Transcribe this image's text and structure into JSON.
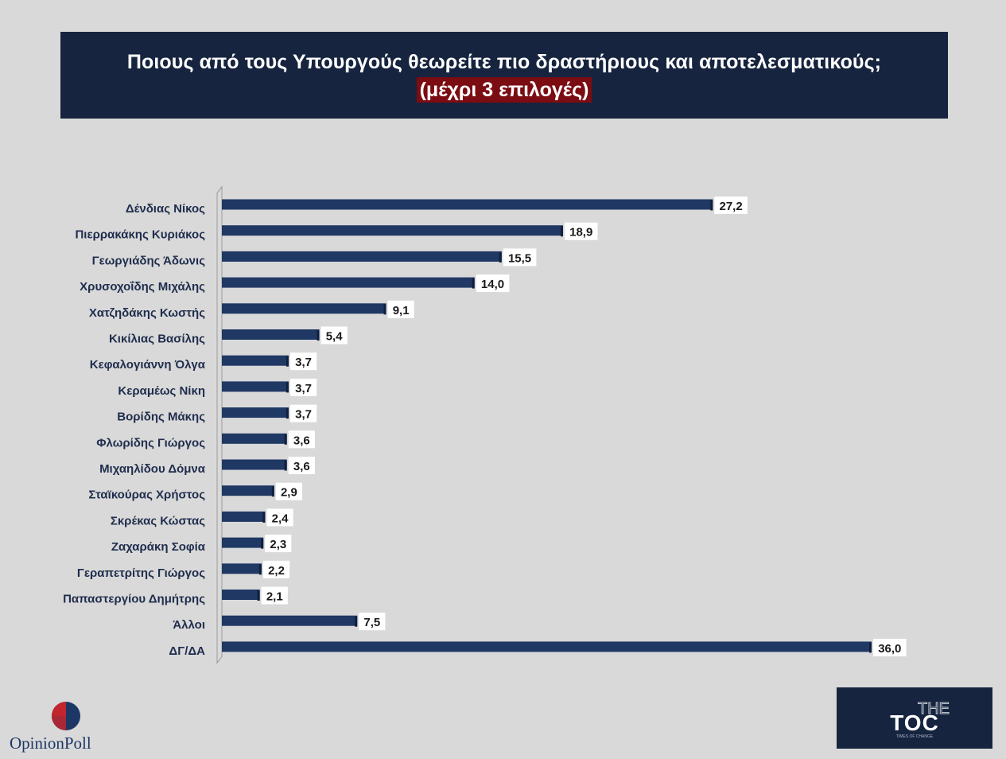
{
  "header": {
    "title": "Ποιους από τους Υπουργούς θεωρείτε πιο δραστήριους και αποτελεσματικούς;",
    "subtitle": "(μέχρι 3 επιλογές)"
  },
  "colors": {
    "background": "#d9d9d9",
    "header_bg": "#16243f",
    "subtitle_bg": "#7a0c12",
    "bar": "#1f3864",
    "label_box": "#ffffff"
  },
  "chart_data": {
    "type": "bar",
    "orientation": "horizontal",
    "categories": [
      "Δένδιας Νίκος",
      "Πιερρακάκης Κυριάκος",
      "Γεωργιάδης Άδωνις",
      "Χρυσοχοΐδης Μιχάλης",
      "Χατζηδάκης Κωστής",
      "Κικίλιας Βασίλης",
      "Κεφαλογιάννη Όλγα",
      "Κεραμέως Νίκη",
      "Βορίδης Μάκης",
      "Φλωρίδης Γιώργος",
      "Μιχαηλίδου Δόμνα",
      "Σταϊκούρας Χρήστος",
      "Σκρέκας Κώστας",
      "Ζαχαράκη Σοφία",
      "Γεραπετρίτης Γιώργος",
      "Παπαστεργίου Δημήτρης",
      "Άλλοι",
      "ΔΓ/ΔΑ"
    ],
    "values": [
      27.2,
      18.9,
      15.5,
      14.0,
      9.1,
      5.4,
      3.7,
      3.7,
      3.7,
      3.6,
      3.6,
      2.9,
      2.4,
      2.3,
      2.2,
      2.1,
      7.5,
      36.0
    ],
    "value_labels": [
      "27,2",
      "18,9",
      "15,5",
      "14,0",
      "9,1",
      "5,4",
      "3,7",
      "3,7",
      "3,7",
      "3,6",
      "3,6",
      "2,9",
      "2,4",
      "2,3",
      "2,2",
      "2,1",
      "7,5",
      "36,0"
    ],
    "xlim": [
      0,
      36
    ],
    "grid": false,
    "legend": "none"
  },
  "logos": {
    "opinion_poll": {
      "part1": "Opinion",
      "part2": "Poll"
    },
    "the_toc": {
      "top": "THE",
      "main": "TOC",
      "tagline": "TIMES OF CHANGE"
    }
  }
}
